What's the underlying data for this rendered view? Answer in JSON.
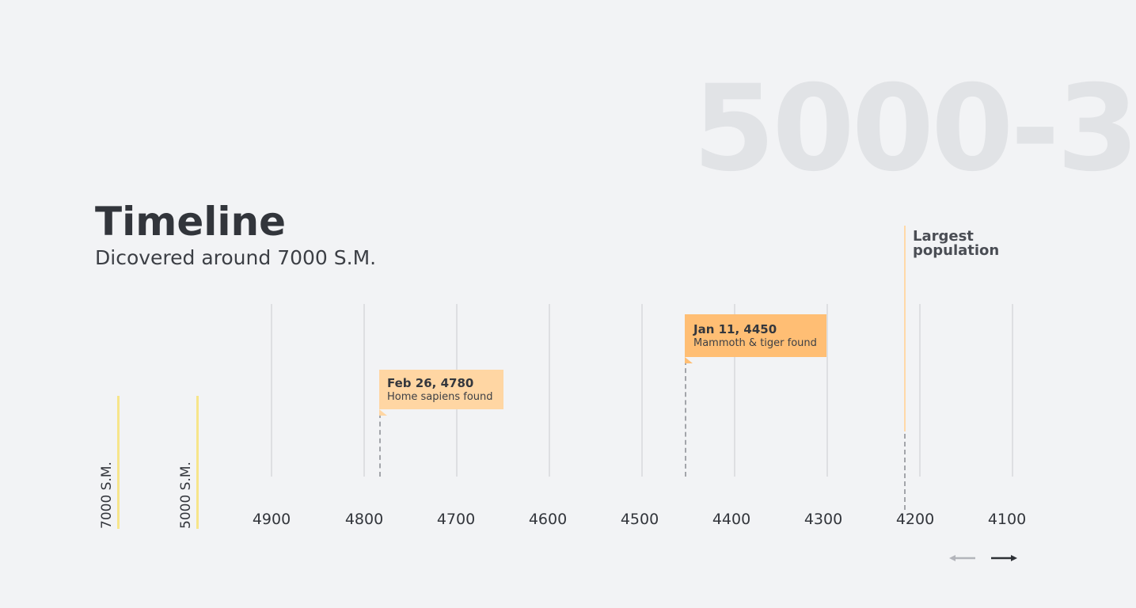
{
  "background_range": "5000-3",
  "header": {
    "title": "Timeline",
    "subtitle": "Dicovered around 7000 S.M."
  },
  "eras": [
    {
      "label": "7000 S.M."
    },
    {
      "label": "5000 S.M."
    }
  ],
  "axis": {
    "ticks": [
      "4900",
      "4800",
      "4700",
      "4600",
      "4500",
      "4400",
      "4300",
      "4200",
      "4100"
    ]
  },
  "events": [
    {
      "date": "Feb 26, 4780",
      "description": "Home sapiens found",
      "color": "#ffd6a3"
    },
    {
      "date": "Jan 11, 4450",
      "description": "Mammoth & tiger found",
      "color": "#ffbe74"
    }
  ],
  "milestone": {
    "label_line1": "Largest",
    "label_line2": "population",
    "color": "#ffd9a8"
  },
  "navigation": {
    "prev_icon": "arrow-left-icon",
    "next_icon": "arrow-right-icon",
    "prev_color": "#b3b5bb",
    "next_color": "#2e3136"
  }
}
